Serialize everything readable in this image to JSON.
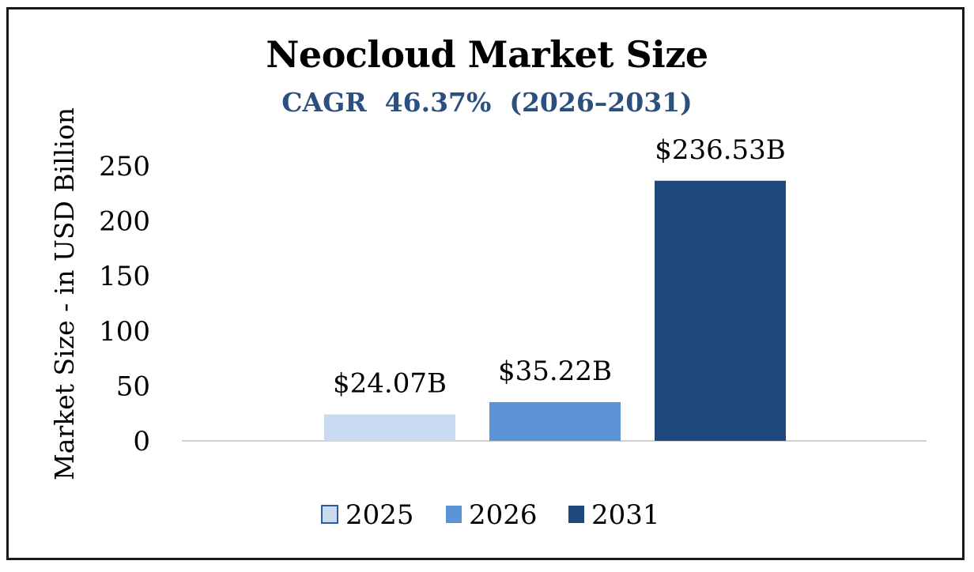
{
  "chart_data": {
    "type": "bar",
    "title": "Neocloud Market Size",
    "subtitle": "CAGR  46.37%  (2026–2031)",
    "ylabel": "Market Size - in USD Billion",
    "xlabel": "",
    "ylim": [
      0,
      250
    ],
    "yticks": [
      0,
      50,
      100,
      150,
      200,
      250
    ],
    "grid": false,
    "legend_position": "bottom",
    "categories": [
      "2025",
      "2026",
      "2031"
    ],
    "values": [
      24.07,
      35.22,
      236.53
    ],
    "data_labels": [
      "$24.07B",
      "$35.22B",
      "$236.53B"
    ],
    "colors": [
      "#c9daf1",
      "#5b93d6",
      "#1f497d"
    ],
    "legend_border_color": "#2e5c99",
    "axis_color": "#d0d0d0"
  }
}
